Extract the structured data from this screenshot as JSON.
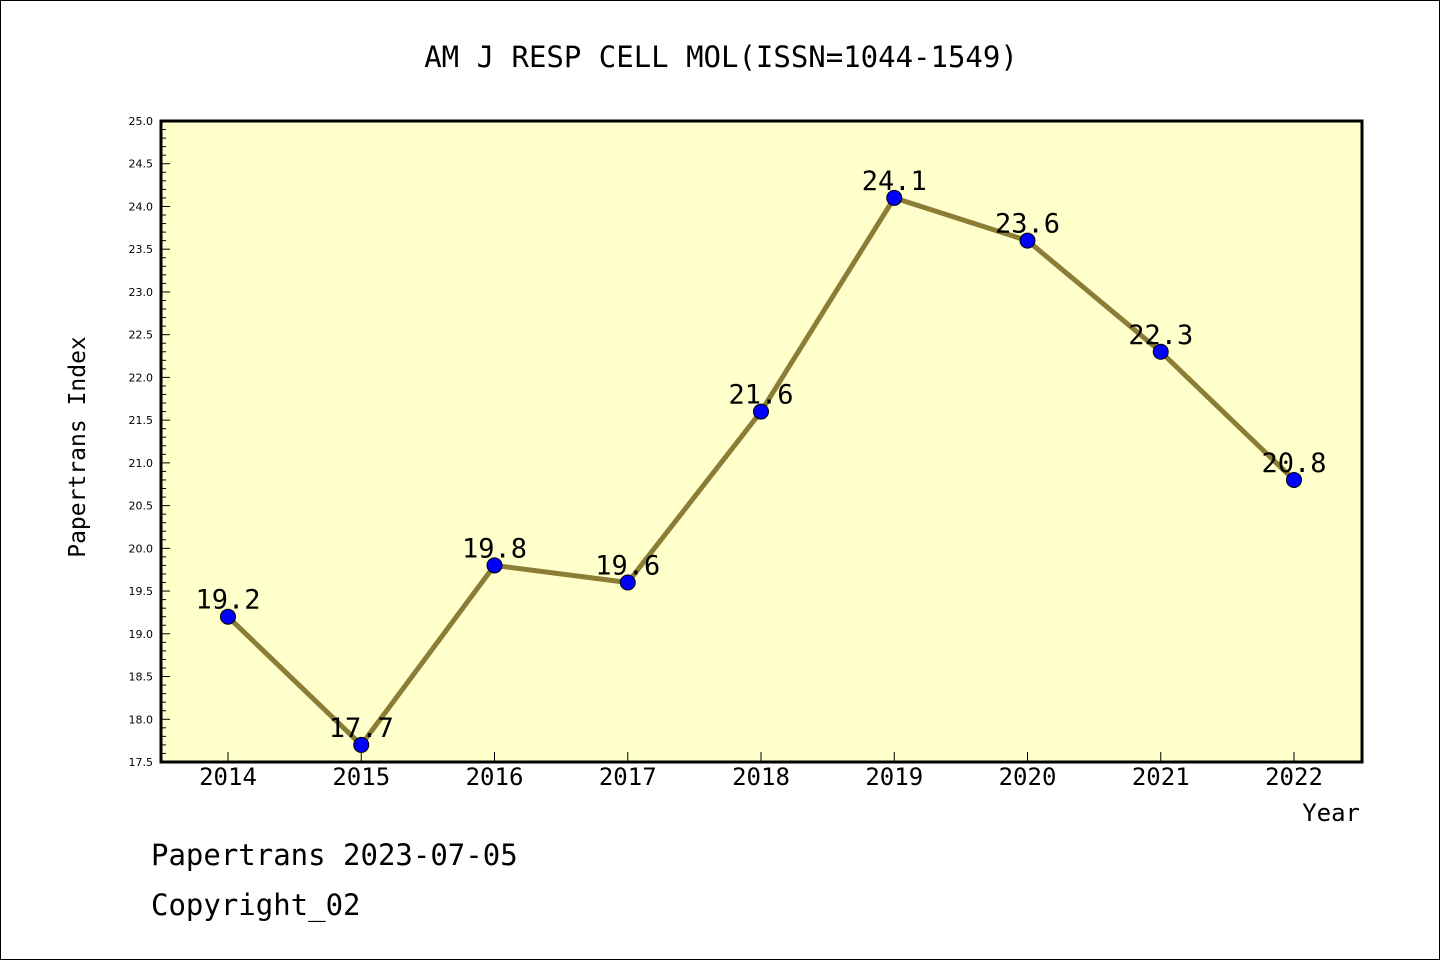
{
  "chart_data": {
    "type": "line",
    "title": "AM J RESP CELL MOL(ISSN=1044-1549)",
    "xlabel": "Year",
    "ylabel": "Papertrans Index",
    "categories": [
      "2014",
      "2015",
      "2016",
      "2017",
      "2018",
      "2019",
      "2020",
      "2021",
      "2022"
    ],
    "series": [
      {
        "values": [
          19.2,
          17.7,
          19.8,
          19.6,
          21.6,
          24.1,
          23.6,
          22.3,
          20.8
        ]
      }
    ],
    "data_labels": [
      "19.2",
      "17.7",
      "19.8",
      "19.6",
      "21.6",
      "24.1",
      "23.6",
      "22.3",
      "20.8"
    ],
    "ylim": [
      17.5,
      25.0
    ],
    "yticks": [
      "17.5",
      "18.0",
      "18.5",
      "19.0",
      "19.5",
      "20.0",
      "20.5",
      "21.0",
      "21.5",
      "22.0",
      "22.5",
      "23.0",
      "23.5",
      "24.0",
      "24.5",
      "25.0"
    ],
    "grid": false,
    "colors": {
      "plot_background": "#ffffcc",
      "line": "#8b7d35",
      "marker": "#0000ff"
    }
  },
  "footer": {
    "line1": "Papertrans 2023-07-05",
    "line2": "Copyright_02"
  }
}
